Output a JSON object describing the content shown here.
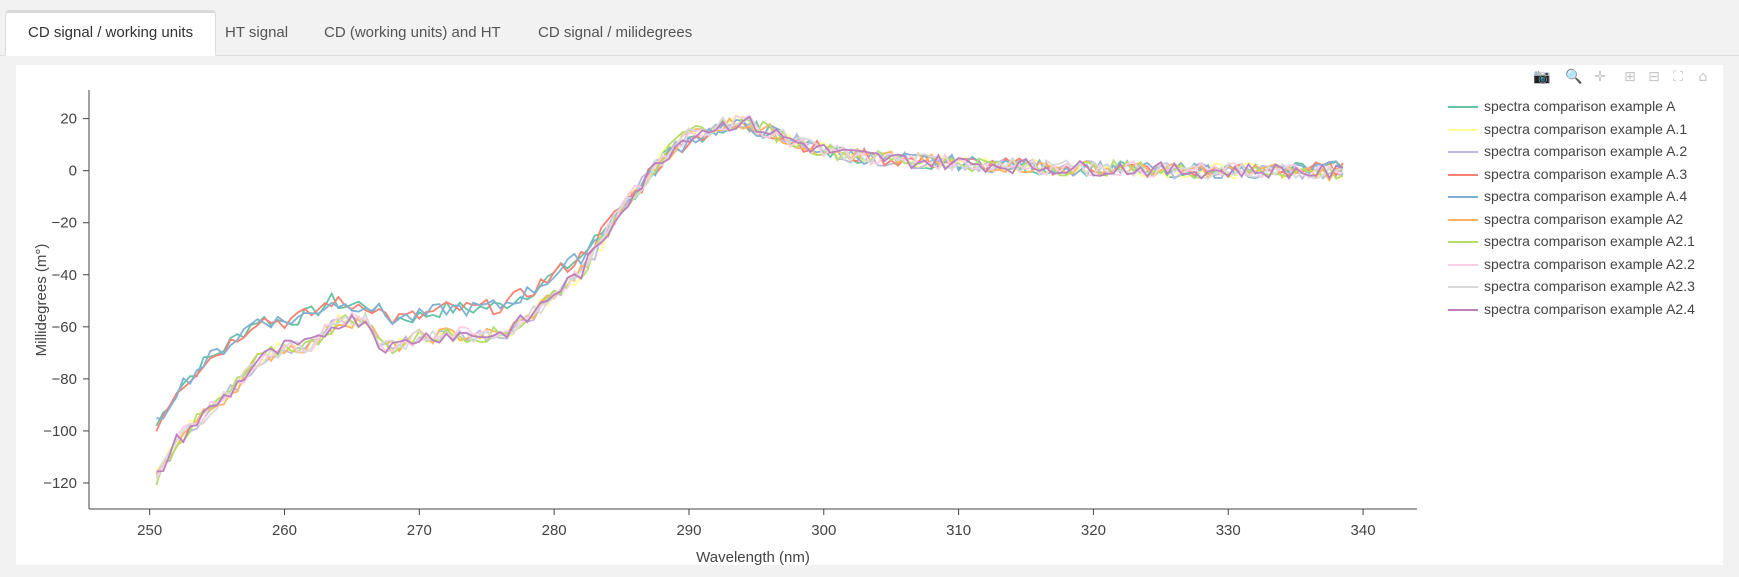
{
  "tabs": [
    {
      "label": "CD signal / working units",
      "active": true
    },
    {
      "label": "HT signal",
      "active": false
    },
    {
      "label": "CD (working units) and HT",
      "active": false
    },
    {
      "label": "CD signal / milidegrees",
      "active": false
    }
  ],
  "modebar": {
    "icons": [
      "camera-icon",
      "zoom-icon",
      "pan-icon",
      "zoom-in-icon",
      "zoom-out-icon",
      "autoscale-icon",
      "home-icon"
    ]
  },
  "chart_data": {
    "type": "line",
    "xlabel": "Wavelength (nm)",
    "ylabel": "Millidegrees (m°)",
    "xlim": [
      245.5,
      344
    ],
    "ylim": [
      -130,
      31
    ],
    "xticks": [
      250,
      260,
      270,
      280,
      290,
      300,
      310,
      320,
      330,
      340
    ],
    "yticks": [
      20,
      0,
      -20,
      -40,
      -60,
      -80,
      -100,
      -120
    ],
    "legend": "top-right",
    "grid": false,
    "x_start": 250.5,
    "x_end": 338.5,
    "x_step": 0.5,
    "key_points_group_upper": [
      [
        250.5,
        -98
      ],
      [
        252,
        -84
      ],
      [
        254,
        -74
      ],
      [
        256,
        -66
      ],
      [
        258,
        -57
      ],
      [
        260,
        -58
      ],
      [
        262,
        -55
      ],
      [
        263.5,
        -50
      ],
      [
        264.5,
        -52
      ],
      [
        266,
        -51
      ],
      [
        268,
        -57
      ],
      [
        270,
        -56
      ],
      [
        272,
        -53
      ],
      [
        274,
        -53
      ],
      [
        276,
        -52
      ],
      [
        278,
        -47
      ],
      [
        280,
        -40
      ],
      [
        282,
        -33
      ],
      [
        283.5,
        -24
      ],
      [
        285,
        -14
      ],
      [
        286.5,
        -6
      ],
      [
        288,
        4
      ],
      [
        290,
        12
      ],
      [
        292,
        16
      ],
      [
        294,
        17
      ],
      [
        296,
        15
      ],
      [
        298,
        11
      ],
      [
        300,
        8
      ],
      [
        302,
        6
      ],
      [
        304,
        5
      ],
      [
        306,
        4
      ],
      [
        310,
        3
      ],
      [
        314,
        2
      ],
      [
        318,
        1
      ],
      [
        322,
        1
      ],
      [
        326,
        0
      ],
      [
        330,
        0
      ],
      [
        334,
        0
      ],
      [
        338.5,
        1
      ]
    ],
    "key_points_group_lower": [
      [
        250.5,
        -118
      ],
      [
        252,
        -104
      ],
      [
        254,
        -94
      ],
      [
        256,
        -85
      ],
      [
        258,
        -73
      ],
      [
        260,
        -68
      ],
      [
        262,
        -67
      ],
      [
        263,
        -62
      ],
      [
        264,
        -58
      ],
      [
        266,
        -57
      ],
      [
        267,
        -66
      ],
      [
        268,
        -68
      ],
      [
        270,
        -64
      ],
      [
        272,
        -63
      ],
      [
        274,
        -63
      ],
      [
        276,
        -63
      ],
      [
        278,
        -57
      ],
      [
        280,
        -47
      ],
      [
        282,
        -39
      ],
      [
        283.5,
        -28
      ],
      [
        285,
        -14
      ],
      [
        286.5,
        -5
      ],
      [
        288,
        5
      ],
      [
        290,
        14
      ],
      [
        292,
        17
      ],
      [
        294,
        19
      ],
      [
        296,
        15
      ],
      [
        298,
        11
      ],
      [
        300,
        8
      ],
      [
        302,
        6
      ],
      [
        304,
        5
      ],
      [
        306,
        4
      ],
      [
        310,
        3
      ],
      [
        314,
        2
      ],
      [
        318,
        1
      ],
      [
        322,
        1
      ],
      [
        326,
        0
      ],
      [
        330,
        0
      ],
      [
        334,
        0
      ],
      [
        338.5,
        -1
      ]
    ],
    "series": [
      {
        "name": "spectra comparison example A",
        "color": "#66c2a5",
        "group": "upper"
      },
      {
        "name": "spectra comparison example A.1",
        "color": "#ffff99",
        "group": "lower"
      },
      {
        "name": "spectra comparison example A.2",
        "color": "#bebada",
        "group": "lower"
      },
      {
        "name": "spectra comparison example A.3",
        "color": "#fb8072",
        "group": "upper"
      },
      {
        "name": "spectra comparison example A.4",
        "color": "#80b1d3",
        "group": "upper"
      },
      {
        "name": "spectra comparison example A2",
        "color": "#fdb462",
        "group": "lower"
      },
      {
        "name": "spectra comparison example A2.1",
        "color": "#b3de69",
        "group": "lower"
      },
      {
        "name": "spectra comparison example A2.2",
        "color": "#fccde5",
        "group": "lower"
      },
      {
        "name": "spectra comparison example A2.3",
        "color": "#d9d9d9",
        "group": "lower"
      },
      {
        "name": "spectra comparison example A2.4",
        "color": "#bc80bd",
        "group": "lower"
      }
    ]
  }
}
